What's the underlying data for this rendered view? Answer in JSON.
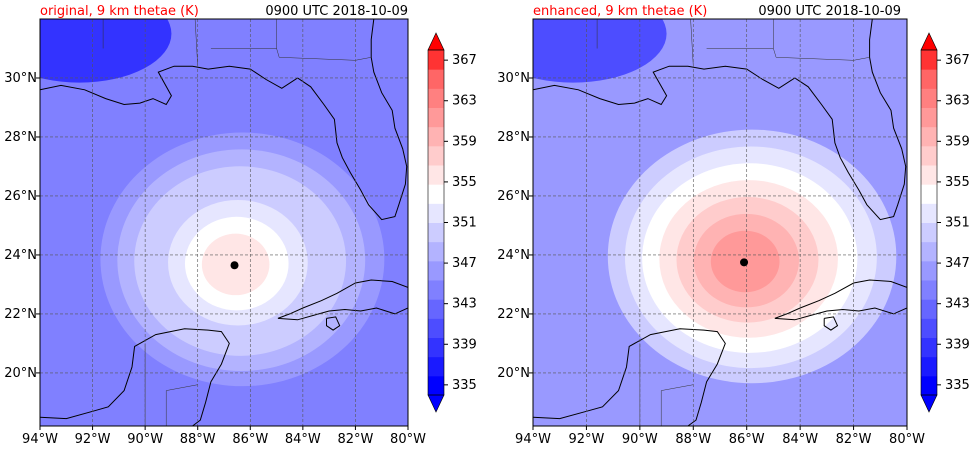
{
  "chart_data": [
    {
      "type": "heatmap",
      "panel": "left",
      "title_left": "original, 9 km thetae (K)",
      "title_right": "0900 UTC 2018-10-09",
      "x_ticks": [
        "94°W",
        "92°W",
        "90°W",
        "88°W",
        "86°W",
        "84°W",
        "82°W",
        "80°W"
      ],
      "y_ticks": [
        "20°N",
        "22°N",
        "24°N",
        "26°N",
        "28°N",
        "30°N"
      ],
      "x_range": [
        -94,
        -80
      ],
      "y_range": [
        18.2,
        32.0
      ],
      "grid": true,
      "storm_center": {
        "lon": -86.6,
        "lat": 23.65
      },
      "colorbar_ticks": [
        "335",
        "339",
        "343",
        "347",
        "351",
        "355",
        "359",
        "363",
        "367"
      ],
      "colorbar_range": [
        335,
        369
      ],
      "field_summary": {
        "background_K": 345,
        "core_peak_K": 357
      }
    },
    {
      "type": "heatmap",
      "panel": "right",
      "title_left": "enhanced, 9 km thetae (K)",
      "title_right": "0900 UTC 2018-10-09",
      "x_ticks": [
        "94°W",
        "92°W",
        "90°W",
        "88°W",
        "86°W",
        "84°W",
        "82°W",
        "80°W"
      ],
      "y_ticks": [
        "20°N",
        "22°N",
        "24°N",
        "26°N",
        "28°N",
        "30°N"
      ],
      "x_range": [
        -94,
        -80
      ],
      "y_range": [
        18.2,
        32.0
      ],
      "grid": true,
      "storm_center": {
        "lon": -86.1,
        "lat": 23.75
      },
      "colorbar_ticks": [
        "335",
        "339",
        "343",
        "347",
        "351",
        "355",
        "359",
        "363",
        "367"
      ],
      "colorbar_range": [
        335,
        369
      ],
      "field_summary": {
        "background_K": 348,
        "core_peak_K": 363
      }
    }
  ],
  "colors": {
    "levels": [
      "#0000ff",
      "#1a1aff",
      "#3333ff",
      "#4d4dff",
      "#6666ff",
      "#8080ff",
      "#9999ff",
      "#b3b3ff",
      "#ccccff",
      "#e6e6ff",
      "#ffffff",
      "#ffe6e6",
      "#ffcccc",
      "#ffb3b3",
      "#ff9999",
      "#ff8080",
      "#ff6666",
      "#ff3333"
    ],
    "coast": "#000000",
    "grid": "#555555",
    "title_accent": "#ff0000"
  }
}
